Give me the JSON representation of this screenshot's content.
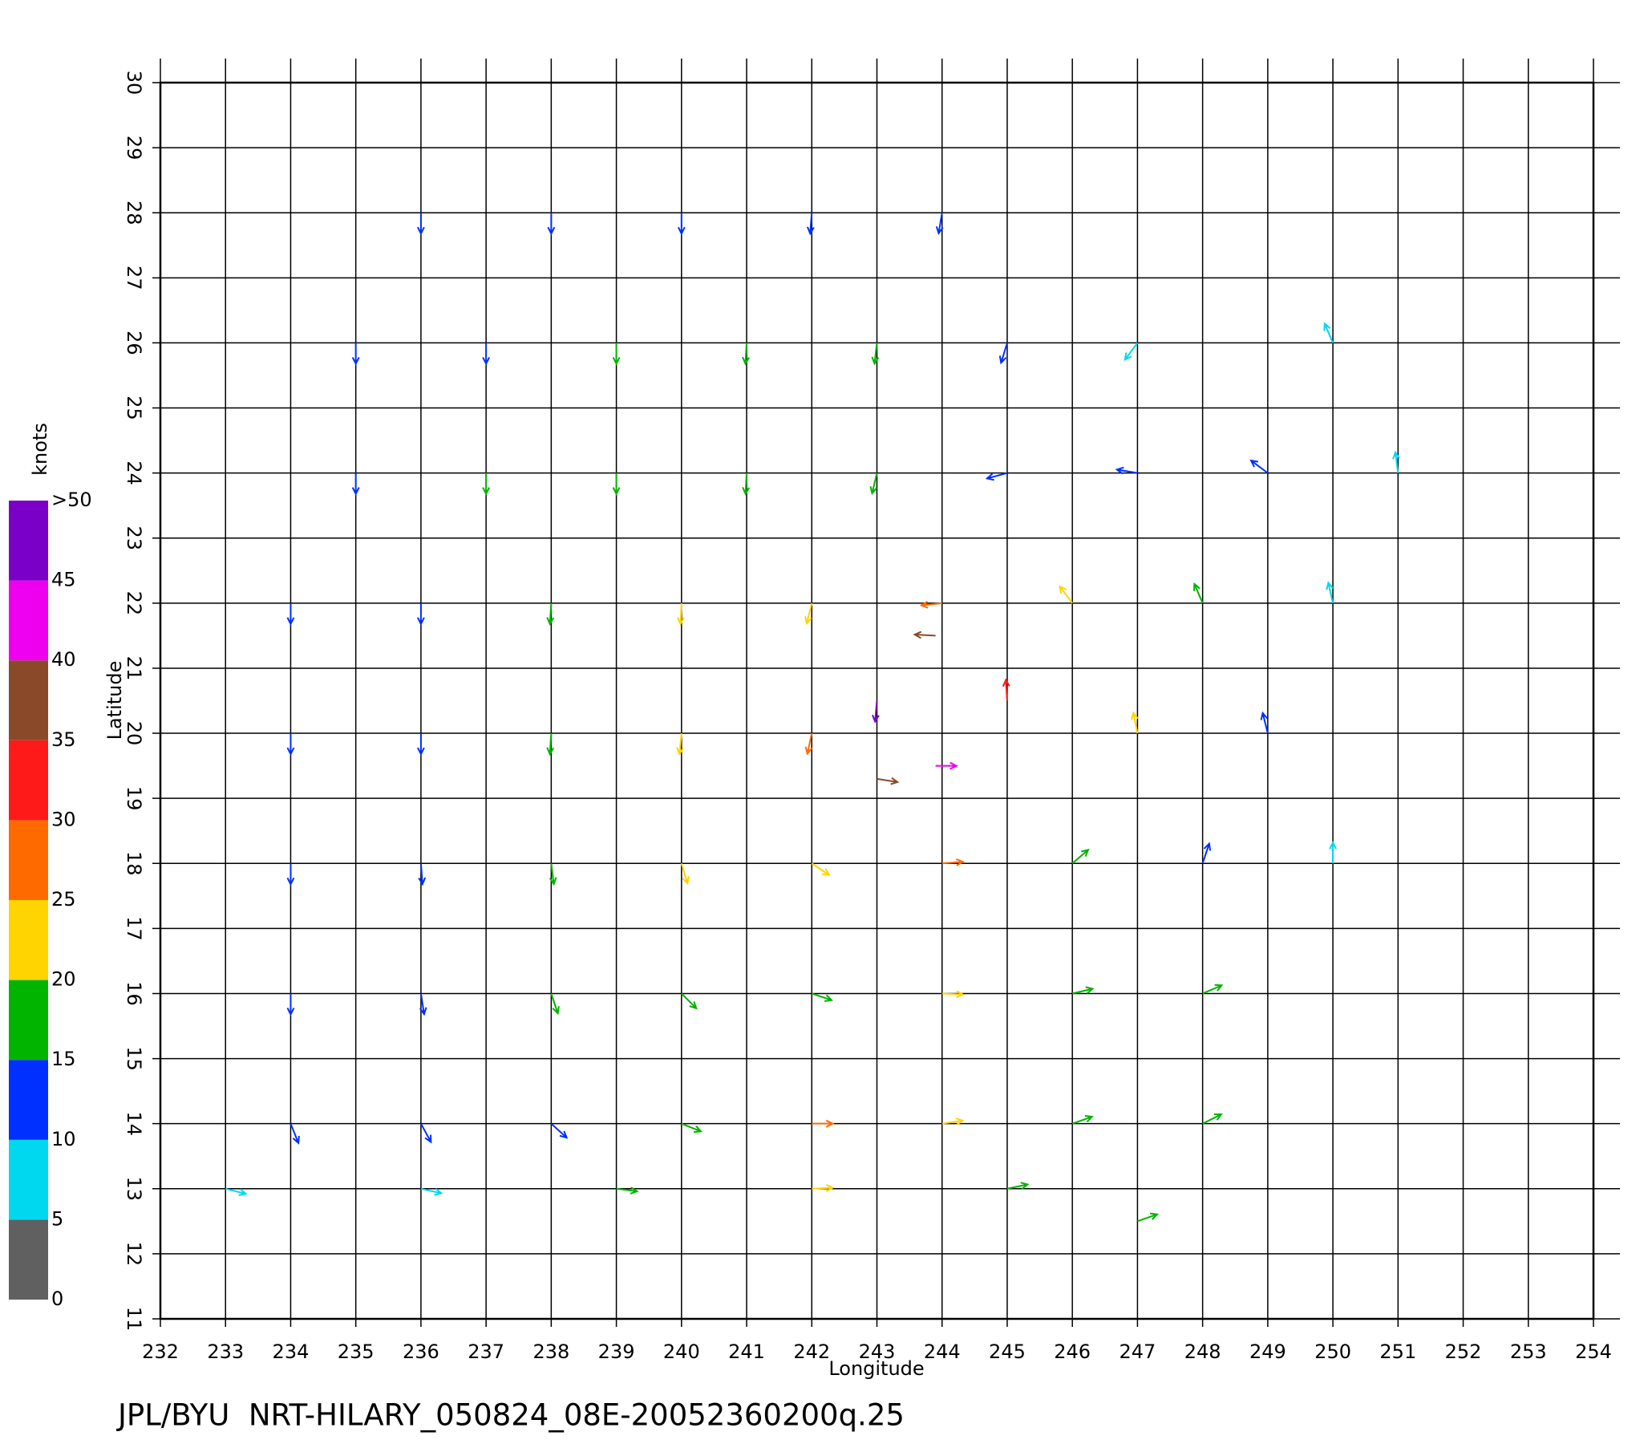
{
  "chart_data": {
    "type": "quiver",
    "title": "JPL/BYU  NRT-HILARY_050824_08E-20052360200q.25",
    "xlabel": "Longitude",
    "ylabel": "Latitude",
    "xlim": [
      232,
      254
    ],
    "ylim": [
      11,
      30
    ],
    "xticks": [
      232,
      233,
      234,
      235,
      236,
      237,
      238,
      239,
      240,
      241,
      242,
      243,
      244,
      245,
      246,
      247,
      248,
      249,
      250,
      251,
      252,
      253,
      254
    ],
    "yticks": [
      11,
      12,
      13,
      14,
      15,
      16,
      17,
      18,
      19,
      20,
      21,
      22,
      23,
      24,
      25,
      26,
      27,
      28,
      29,
      30
    ],
    "grid": true,
    "x": [
      236,
      238,
      240,
      242,
      244,
      235,
      237,
      239,
      241,
      243,
      245,
      247,
      250,
      235,
      237,
      239,
      241,
      243,
      245,
      247,
      249,
      251,
      234,
      236,
      238,
      240,
      242,
      244,
      246,
      248,
      250,
      234,
      236,
      238,
      240,
      242,
      245,
      247,
      249,
      243.9,
      243,
      243.9,
      243,
      234,
      236,
      238,
      240,
      242,
      244,
      246,
      248,
      250,
      234,
      236,
      238,
      240,
      242,
      244,
      246,
      248,
      234,
      236,
      238,
      240,
      242,
      244,
      246,
      248,
      233,
      236,
      239,
      242,
      245,
      247
    ],
    "y": [
      28,
      28,
      28,
      28,
      28,
      26,
      26,
      26,
      26,
      26,
      26,
      26,
      26,
      24,
      24,
      24,
      24,
      24,
      24,
      24,
      24,
      24,
      22,
      22,
      22,
      22,
      22,
      22,
      22,
      22,
      22,
      20,
      20,
      20,
      20,
      20,
      20.5,
      20,
      20,
      19.5,
      19.3,
      21.5,
      20.5,
      18,
      18,
      18,
      18,
      18,
      18,
      18,
      18,
      18,
      16,
      16,
      16,
      16,
      16,
      16,
      16,
      16,
      14,
      14,
      14,
      14,
      14,
      14,
      14,
      14,
      13,
      13,
      13,
      13,
      13,
      12.5
    ],
    "u": [
      0,
      0,
      0,
      -1,
      -2,
      0,
      0,
      0,
      -1,
      -2,
      -4,
      -3,
      -3,
      0,
      0,
      0,
      -1,
      -4,
      -11,
      -12,
      -8,
      -1,
      0,
      0,
      -1,
      -1,
      -6,
      -28,
      -12,
      -6,
      -2,
      0,
      0,
      -1,
      -2,
      -6,
      -2,
      -4,
      -3,
      42,
      38,
      -38,
      -4,
      0,
      1,
      2,
      6,
      18,
      26,
      14,
      4,
      0,
      0,
      2,
      5,
      12,
      18,
      20,
      17,
      14,
      4,
      6,
      11,
      15,
      28,
      20,
      17,
      16,
      8,
      9,
      16,
      22,
      19,
      17
    ],
    "v": [
      -11,
      -12,
      -12,
      -13,
      -12,
      -12,
      -14,
      -16,
      -17,
      -17,
      -13,
      -4,
      7,
      -12,
      -15,
      -17,
      -19,
      -17,
      -3,
      2,
      6,
      8,
      -12,
      -14,
      -16,
      -20,
      -24,
      -3,
      16,
      14,
      9,
      -12,
      -14,
      -16,
      -20,
      -28,
      30,
      20,
      12,
      0,
      -6,
      2,
      -46,
      -12,
      -14,
      -16,
      -20,
      -12,
      2,
      12,
      12,
      7,
      -12,
      -13,
      -15,
      -12,
      -6,
      -1,
      4,
      6,
      -10,
      -11,
      -10,
      -6,
      0,
      3,
      6,
      8,
      -2,
      -2,
      -2,
      1,
      4,
      6
    ],
    "colorbar": {
      "label": "knots",
      "lim": [
        0,
        50
      ],
      "ticks": [
        0,
        5,
        10,
        15,
        20,
        25,
        30,
        35,
        40,
        45,
        {
          "value": 50,
          "label": ">50"
        }
      ],
      "colors": [
        "#606060",
        "#00d8f0",
        "#0030ff",
        "#00b400",
        "#ffd400",
        "#ff6a00",
        "#ff1a1a",
        "#8a4a2a",
        "#ee00ee",
        "#7a00c8"
      ]
    }
  }
}
